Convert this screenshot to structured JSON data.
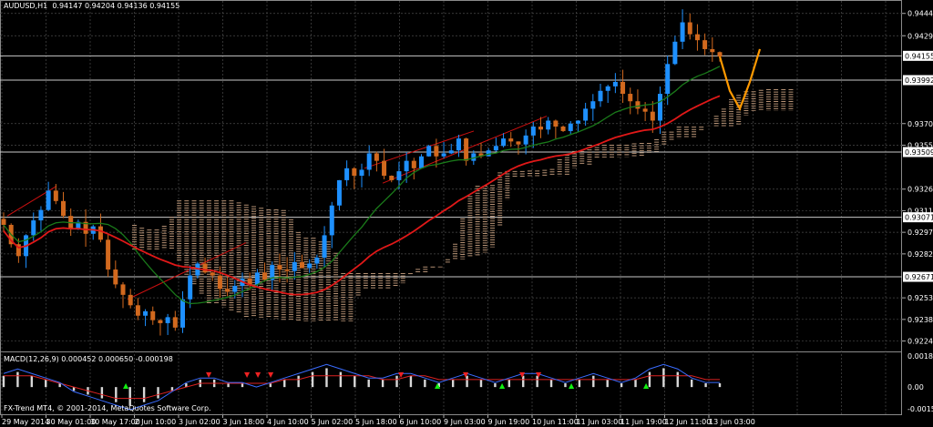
{
  "header": {
    "symbol": "AUDUSD,H1",
    "ohlc": "0.94147 0.94204 0.94136 0.94155"
  },
  "macd_header": "MACD(12,26,9) 0.000452 0.000650 -0.000198",
  "copyright": "FX-Trend MT4, © 2001-2014, MetaQuotes Software Corp.",
  "colors": {
    "background": "#000000",
    "grid": "#4a4a4a",
    "bull": "#1e90ff",
    "bear": "#d2691e",
    "ma_fast": "#1a7a1a",
    "ma_slow": "#e01818",
    "cloud": "#c8a080",
    "projection": "#ff9900",
    "channel": "#cc1010",
    "hline": "#c8c8c8"
  },
  "chart_data": [
    {
      "type": "candlestick",
      "title": "AUDUSD,H1",
      "ylim": [
        0.9217,
        0.9453
      ],
      "y_ticks": [
        "0.94440",
        "0.94290",
        "0.94155",
        "0.93992",
        "0.93700",
        "0.93555",
        "0.93509",
        "0.93260",
        "0.93115",
        "0.93071",
        "0.92970",
        "0.92825",
        "0.92671",
        "0.92530",
        "0.92385",
        "0.92240"
      ],
      "highlighted_ticks": [
        "0.94155",
        "0.93992",
        "0.93509",
        "0.93071",
        "0.92671"
      ],
      "x_ticks": [
        "29 May 2014",
        "30 May 01:00",
        "30 May 17:00",
        "2 Jun 10:00",
        "3 Jun 02:00",
        "3 Jun 18:00",
        "4 Jun 10:00",
        "5 Jun 02:00",
        "5 Jun 18:00",
        "6 Jun 10:00",
        "9 Jun 03:00",
        "9 Jun 19:00",
        "10 Jun 11:00",
        "11 Jun 03:00",
        "11 Jun 19:00",
        "12 Jun 11:00",
        "13 Jun 03:00"
      ],
      "horizontal_lines": [
        0.94155,
        0.93992,
        0.93509,
        0.93071,
        0.92671
      ],
      "price_path": [
        0.9302,
        0.9289,
        0.9281,
        0.9295,
        0.9305,
        0.9312,
        0.9325,
        0.9318,
        0.9308,
        0.9299,
        0.9304,
        0.9296,
        0.9301,
        0.9292,
        0.9272,
        0.9262,
        0.9255,
        0.9248,
        0.9241,
        0.9244,
        0.9238,
        0.9236,
        0.924,
        0.9233,
        0.9252,
        0.9268,
        0.9276,
        0.927,
        0.9268,
        0.9259,
        0.9257,
        0.9261,
        0.9266,
        0.9262,
        0.927,
        0.9265,
        0.9275,
        0.9272,
        0.9271,
        0.9277,
        0.9273,
        0.9276,
        0.928,
        0.9295,
        0.9315,
        0.9332,
        0.934,
        0.9335,
        0.9339,
        0.935,
        0.9345,
        0.9335,
        0.9332,
        0.9338,
        0.9345,
        0.934,
        0.9348,
        0.9355,
        0.9348,
        0.935,
        0.9352,
        0.936,
        0.9345,
        0.935,
        0.9348,
        0.9352,
        0.9355,
        0.936,
        0.9358,
        0.9356,
        0.9362,
        0.9368,
        0.9366,
        0.9372,
        0.9368,
        0.9365,
        0.937,
        0.9372,
        0.938,
        0.9385,
        0.9392,
        0.9395,
        0.9398,
        0.939,
        0.9385,
        0.938,
        0.9378,
        0.9372,
        0.939,
        0.941,
        0.9425,
        0.9438,
        0.943,
        0.9426,
        0.942,
        0.9418,
        0.9415
      ],
      "projection_path": [
        0.9415,
        0.9392,
        0.938,
        0.9398,
        0.942
      ],
      "macd_ylim": [
        -0.0006,
        0.0008
      ],
      "macd_ticks": [
        "0.001824",
        "0.00",
        "-0.001597"
      ],
      "macd_histogram": [
        0.0003,
        0.0004,
        0.0003,
        0.0002,
        0.0001,
        -0.0001,
        -0.0002,
        -0.0003,
        -0.0004,
        -0.0005,
        -0.0004,
        -0.0003,
        -0.0001,
        0.0001,
        0.0002,
        0.0002,
        0.0001,
        0.0001,
        0.0,
        0.0001,
        0.0002,
        0.0003,
        0.0004,
        0.0005,
        0.0004,
        0.0003,
        0.0002,
        0.0002,
        0.0003,
        0.0003,
        0.0002,
        0.0001,
        0.0002,
        0.0003,
        0.0002,
        0.0001,
        0.0002,
        0.0003,
        0.0003,
        0.0002,
        0.0001,
        0.0002,
        0.0003,
        0.0002,
        0.0001,
        0.0002,
        0.0004,
        0.0005,
        0.0004,
        0.0002,
        0.0001,
        0.0001
      ],
      "macd_signal": [
        0.0003,
        0.0003,
        0.0003,
        0.0002,
        0.0001,
        0.0,
        -0.0001,
        -0.0002,
        -0.0003,
        -0.0003,
        -0.0003,
        -0.0002,
        -0.0001,
        0.0,
        0.0001,
        0.0001,
        0.0001,
        0.0001,
        0.0001,
        0.0001,
        0.0002,
        0.0002,
        0.0003,
        0.0003,
        0.0003,
        0.0003,
        0.0003,
        0.0002,
        0.0002,
        0.0003,
        0.0003,
        0.0002,
        0.0002,
        0.0002,
        0.0002,
        0.0002,
        0.0002,
        0.0002,
        0.0002,
        0.0002,
        0.0002,
        0.0002,
        0.0002,
        0.0002,
        0.0002,
        0.0002,
        0.0003,
        0.0003,
        0.0003,
        0.0003,
        0.0002,
        0.0002
      ]
    }
  ]
}
